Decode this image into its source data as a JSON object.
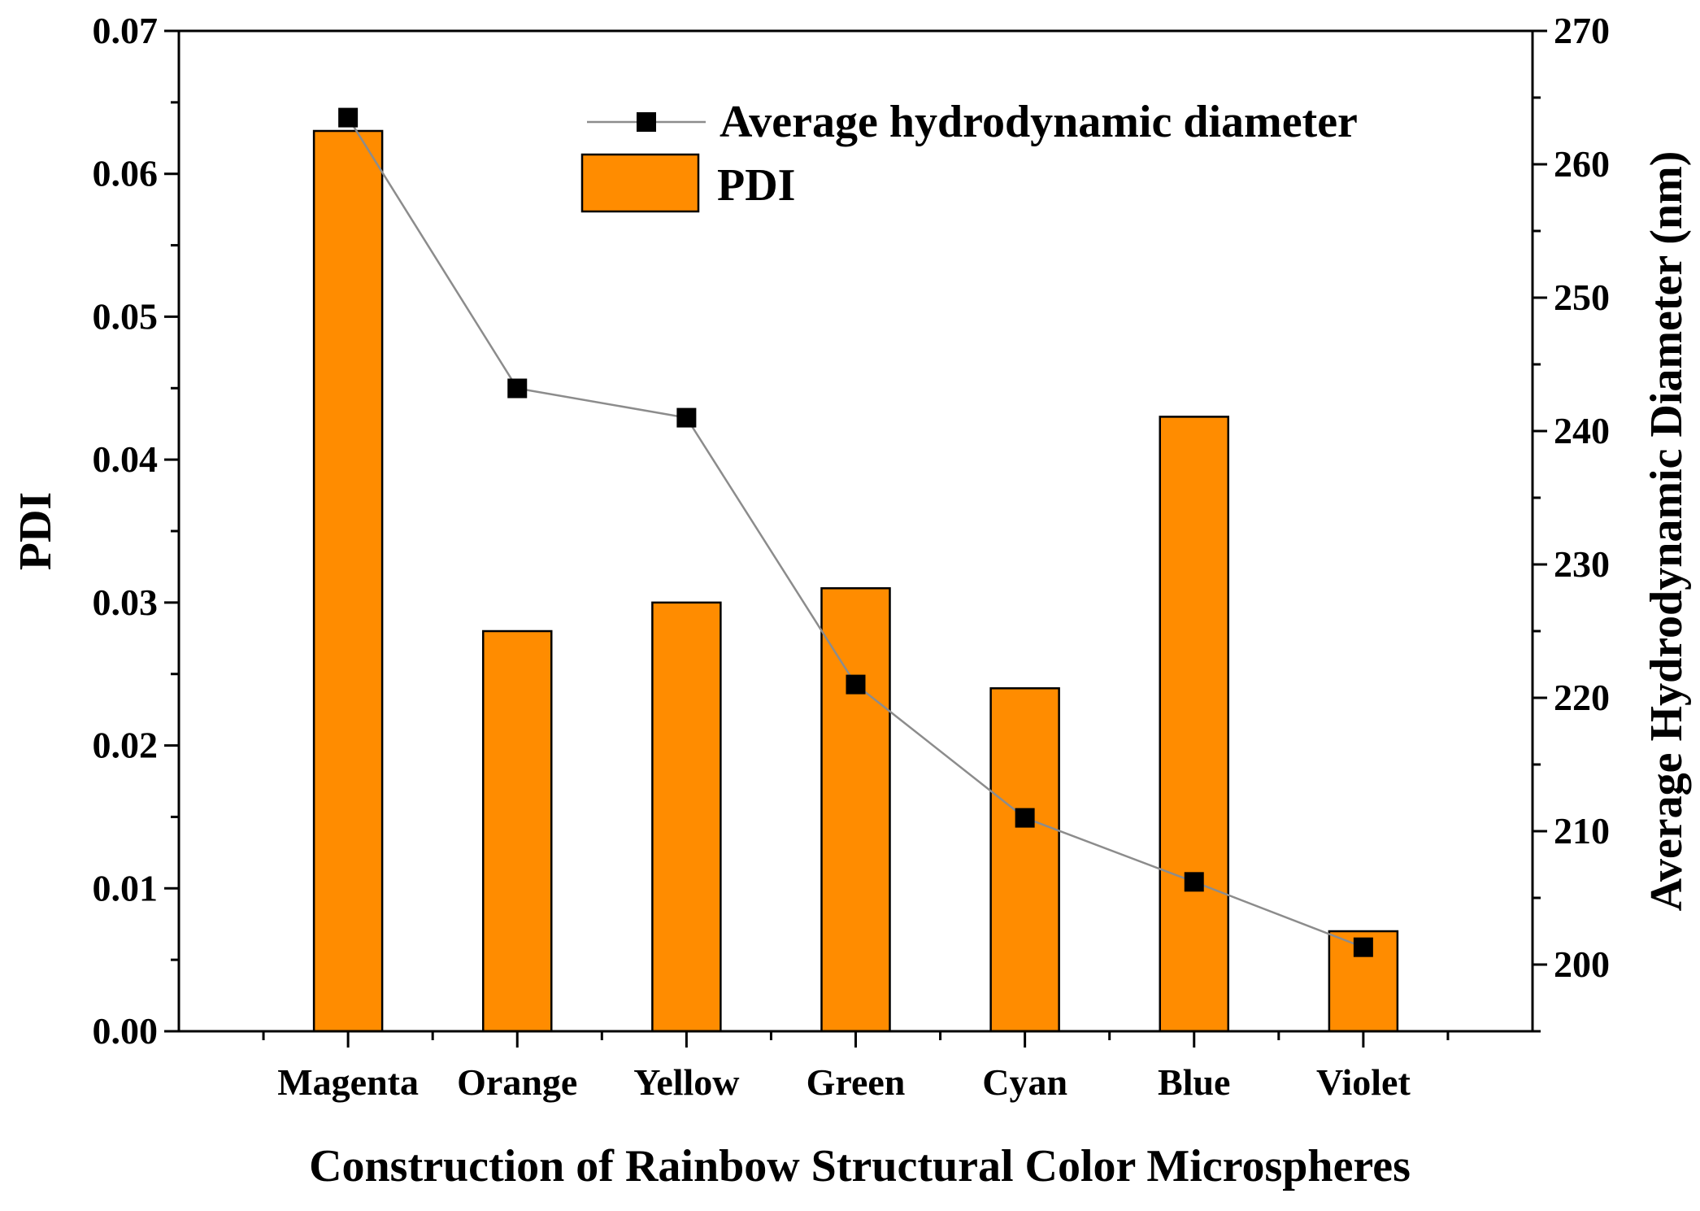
{
  "chart_data": {
    "type": "bar",
    "xlabel": "Construction of Rainbow Structural Color Microspheres",
    "ylabel": "PDI",
    "y2label": "Average Hydrodynamic Diameter (nm)",
    "categories": [
      "Magenta",
      "Orange",
      "Yellow",
      "Green",
      "Cyan",
      "Blue",
      "Violet"
    ],
    "ylim": [
      0,
      0.07
    ],
    "y_ticks": [
      "0.00",
      "0.01",
      "0.02",
      "0.03",
      "0.04",
      "0.05",
      "0.06",
      "0.07"
    ],
    "y2lim": [
      195,
      270
    ],
    "y2_ticks": [
      "200",
      "210",
      "220",
      "230",
      "240",
      "250",
      "260",
      "270"
    ],
    "series": [
      {
        "name": "PDI",
        "type": "bar",
        "axis": "left",
        "color": "#ff8c00",
        "values": [
          0.063,
          0.028,
          0.03,
          0.031,
          0.024,
          0.043,
          0.007
        ]
      },
      {
        "name": "Average hydrodynamic diameter",
        "type": "line",
        "axis": "right",
        "color": "#000000",
        "line_color": "#8c8c8c",
        "values": [
          263.5,
          243.2,
          241.0,
          221.0,
          211.0,
          206.2,
          201.3
        ]
      }
    ],
    "legend": {
      "position": "top-right",
      "entries": [
        "Average hydrodynamic diameter",
        "PDI"
      ]
    },
    "grid": false
  }
}
